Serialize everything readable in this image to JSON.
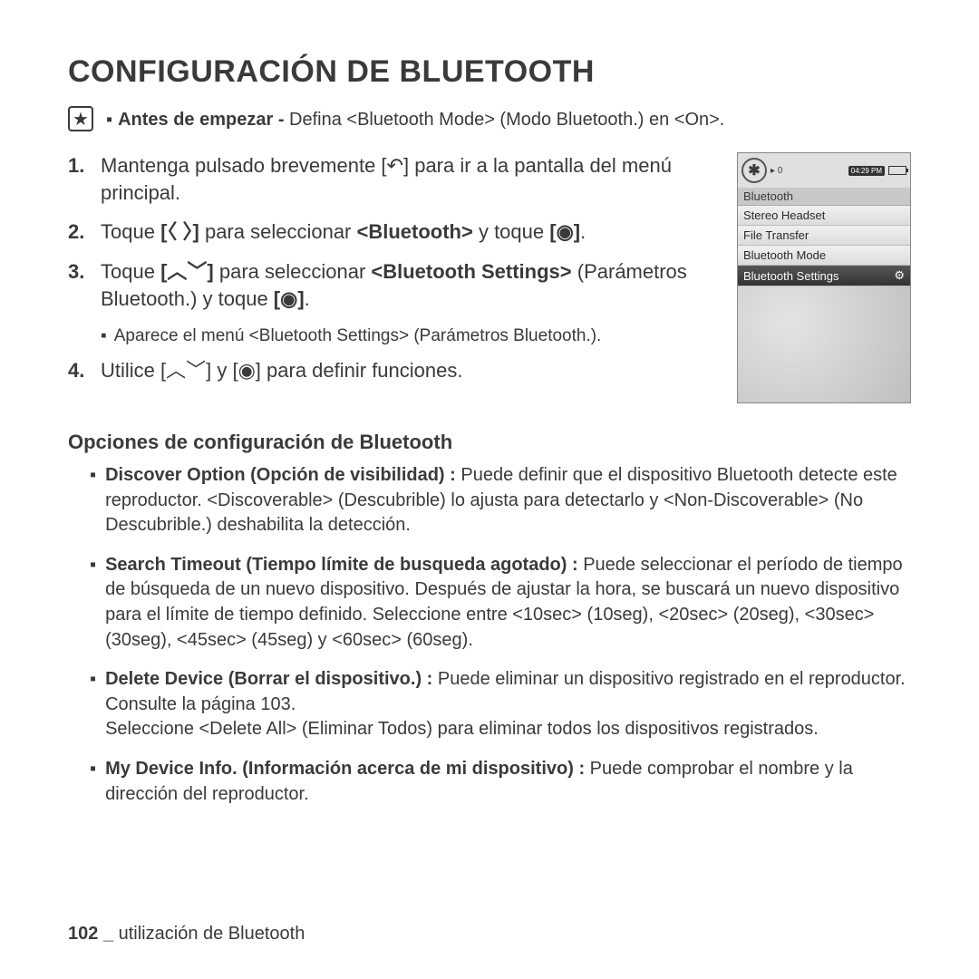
{
  "title": "CONFIGURACIÓN DE BLUETOOTH",
  "note": {
    "bold": "Antes de empezar - ",
    "rest": "Defina <Bluetooth Mode> (Modo Bluetooth.) en <On>."
  },
  "steps": {
    "s1": {
      "num": "1.",
      "a": "Mantenga pulsado brevemente [",
      "b": "] para ir a la pantalla del menú principal."
    },
    "s2": {
      "num": "2.",
      "a": "Toque ",
      "b": " para seleccionar ",
      "bold": "<Bluetooth>",
      "c": " y toque ",
      "d": "."
    },
    "s3": {
      "num": "3.",
      "a": "Toque ",
      "b": " para seleccionar ",
      "bold": "<Bluetooth Settings>",
      "c": " (Parámetros Bluetooth.) y toque ",
      "d": "."
    },
    "s3sub": "Aparece el menú <Bluetooth Settings> (Parámetros Bluetooth.).",
    "s4": {
      "num": "4.",
      "a": "Utilice [",
      "b": "] y [",
      "c": "] para definir funciones."
    }
  },
  "device": {
    "count": "0",
    "time": "04:29 PM",
    "header": "Bluetooth",
    "items": [
      "Stereo Headset",
      "File Transfer",
      "Bluetooth Mode",
      "Bluetooth Settings"
    ]
  },
  "section": "Opciones de configuración de Bluetooth",
  "options": {
    "o1": {
      "bold": "Discover Option (Opción de visibilidad) : ",
      "text": "Puede definir que el dispositivo Bluetooth detecte este reproductor. <Discoverable> (Descubrible) lo ajusta para detectarlo y <Non-Discoverable> (No Descubrible.) deshabilita la detección."
    },
    "o2": {
      "bold": "Search Timeout (Tiempo límite de busqueda agotado) : ",
      "text": "Puede seleccionar el período de tiempo de búsqueda de un nuevo dispositivo. Después de ajustar la hora, se buscará un nuevo dispositivo para el límite de tiempo definido. Seleccione entre <10sec> (10seg), <20sec> (20seg), <30sec> (30seg), <45sec> (45seg) y <60sec> (60seg)."
    },
    "o3": {
      "bold": "Delete Device (Borrar el dispositivo.) : ",
      "text": "Puede eliminar un dispositivo registrado en el reproductor. Consulte la página 103.",
      "text2": "Seleccione <Delete All> (Eliminar Todos) para eliminar todos los dispositivos registrados."
    },
    "o4": {
      "bold": "My Device Info. (Información acerca de mi dispositivo) : ",
      "text": "Puede comprobar el nombre y la dirección del reproductor."
    }
  },
  "footer": {
    "page": "102 _",
    "text": " utilización de Bluetooth"
  }
}
